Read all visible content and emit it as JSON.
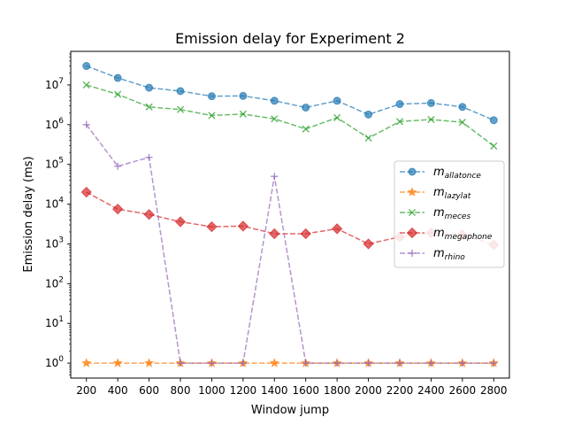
{
  "chart_data": {
    "type": "line",
    "title": "Emission delay for Experiment 2",
    "xlabel": "Window jump",
    "ylabel": "Emission delay (ms)",
    "yscale": "log",
    "ylim": [
      0.42,
      70000000.0
    ],
    "xlim": [
      100,
      2900
    ],
    "x": [
      200,
      400,
      600,
      800,
      1000,
      1200,
      1400,
      1600,
      1800,
      2000,
      2200,
      2400,
      2600,
      2800
    ],
    "x_tick_labels": [
      "200",
      "400",
      "600",
      "800",
      "1000",
      "1200",
      "1400",
      "1600",
      "1800",
      "2000",
      "2200",
      "2400",
      "2600",
      "2800"
    ],
    "y_ticks": [
      {
        "value": 1,
        "base": "10",
        "exp": "0"
      },
      {
        "value": 10,
        "base": "10",
        "exp": "1"
      },
      {
        "value": 100,
        "base": "10",
        "exp": "2"
      },
      {
        "value": 1000,
        "base": "10",
        "exp": "3"
      },
      {
        "value": 10000,
        "base": "10",
        "exp": "4"
      },
      {
        "value": 100000,
        "base": "10",
        "exp": "5"
      },
      {
        "value": 1000000,
        "base": "10",
        "exp": "6"
      },
      {
        "value": 10000000,
        "base": "10",
        "exp": "7"
      }
    ],
    "grid": false,
    "legend_position": "center-right",
    "series": [
      {
        "name": "m",
        "name_sub": "allatonce",
        "color": "#1f77b4",
        "marker": "circle",
        "values": [
          30000000,
          15000000,
          8500000,
          7000000,
          5200000,
          5300000,
          4000000,
          2700000,
          4000000,
          1800000,
          3300000,
          3500000,
          2800000,
          1300000
        ]
      },
      {
        "name": "m",
        "name_sub": "lazylat",
        "color": "#ff7f0e",
        "marker": "star",
        "values": [
          1,
          1,
          1,
          1,
          1,
          1,
          1,
          1,
          1,
          1,
          1,
          1,
          1,
          1
        ]
      },
      {
        "name": "m",
        "name_sub": "meces",
        "color": "#2ca02c",
        "marker": "x",
        "values": [
          10000000,
          5800000,
          2800000,
          2400000,
          1700000,
          1850000,
          1400000,
          780000,
          1500000,
          460000,
          1200000,
          1350000,
          1150000,
          290000
        ]
      },
      {
        "name": "m",
        "name_sub": "megaphone",
        "color": "#d62728",
        "marker": "diamond",
        "values": [
          20000,
          7500,
          5500,
          3600,
          2700,
          2800,
          1800,
          1800,
          2400,
          1000,
          1500,
          1900,
          1700,
          950
        ]
      },
      {
        "name": "m",
        "name_sub": "rhino",
        "color": "#9467bd",
        "marker": "plus",
        "values": [
          1000000,
          90000,
          150000,
          1,
          1,
          1,
          50000,
          1,
          1,
          1,
          1,
          1,
          1,
          1
        ]
      }
    ]
  }
}
